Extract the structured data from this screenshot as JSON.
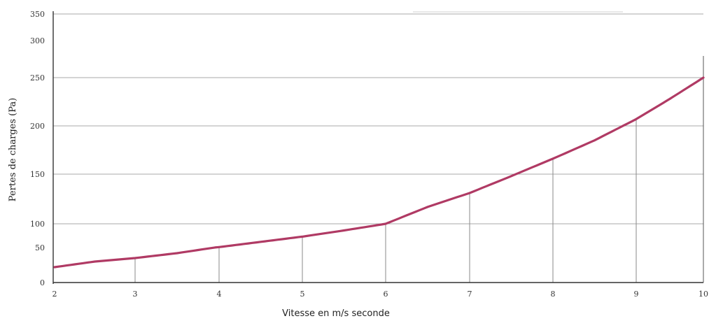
{
  "chart_data": {
    "type": "line",
    "title": "",
    "xlabel": "Vitesse en m/s seconde",
    "ylabel": "Pertes de charges (Pa)",
    "x_ticks": [
      "2",
      "3",
      "4",
      "5",
      "6",
      "7",
      "8",
      "9",
      "10"
    ],
    "y_ticks": [
      "0",
      "50",
      "100",
      "150",
      "200",
      "250",
      "300",
      "350"
    ],
    "xlim": [
      2,
      10
    ],
    "ylim": [
      0,
      350
    ],
    "grid": true,
    "series": [
      {
        "color": "#b03a64",
        "x": [
          2,
          2.5,
          3,
          3.5,
          4,
          4.5,
          5,
          5.5,
          6,
          6.5,
          7,
          7.5,
          8,
          8.5,
          9,
          9.5,
          10
        ],
        "y": [
          22,
          30,
          35,
          42,
          51,
          62,
          73,
          86,
          100,
          117,
          131,
          148,
          166,
          185,
          207,
          228,
          250
        ]
      }
    ],
    "vertical_drop_lines_x": [
      3,
      4,
      5,
      6,
      7,
      8,
      9
    ]
  }
}
